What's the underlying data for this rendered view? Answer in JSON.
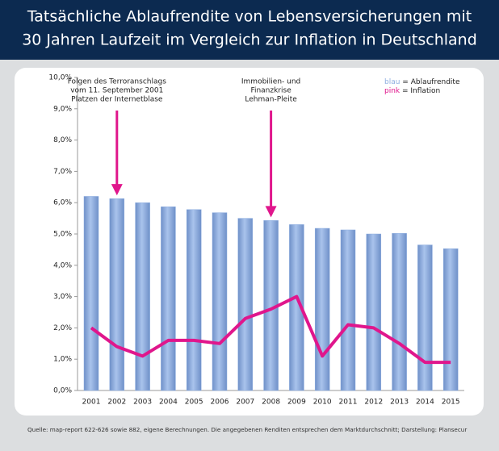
{
  "chart_data": {
    "type": "bar_line",
    "title_lines": [
      "Tatsächliche Ablaufrendite von Lebensversicherungen mit",
      "30 Jahren Laufzeit im Vergleich zur Inflation in Deutschland"
    ],
    "categories": [
      "2001",
      "2002",
      "2003",
      "2004",
      "2005",
      "2006",
      "2007",
      "2008",
      "2009",
      "2010",
      "2011",
      "2012",
      "2013",
      "2014",
      "2015"
    ],
    "series": [
      {
        "name": "Ablaufrendite",
        "color_label": "blau",
        "color": "#8eaee0",
        "values": [
          6.2,
          6.13,
          6.0,
          5.87,
          5.78,
          5.68,
          5.5,
          5.43,
          5.3,
          5.18,
          5.13,
          5.0,
          5.02,
          4.65,
          4.53
        ]
      },
      {
        "name": "Inflation",
        "color_label": "pink",
        "color": "#e0168c",
        "values": [
          2.0,
          1.4,
          1.1,
          1.6,
          1.6,
          1.5,
          2.3,
          2.6,
          3.0,
          1.1,
          2.1,
          2.0,
          1.5,
          0.9,
          0.9
        ]
      }
    ],
    "legend_separator": " = ",
    "ylim": [
      0,
      10
    ],
    "yticks": [
      {
        "value": 0,
        "label": "0,0%"
      },
      {
        "value": 1,
        "label": "1,0%"
      },
      {
        "value": 2,
        "label": "2,0%"
      },
      {
        "value": 3,
        "label": "3,0%"
      },
      {
        "value": 4,
        "label": "4,0%"
      },
      {
        "value": 5,
        "label": "5,0%"
      },
      {
        "value": 6,
        "label": "6,0%"
      },
      {
        "value": 7,
        "label": "7,0%"
      },
      {
        "value": 8,
        "label": "8,0%"
      },
      {
        "value": 9,
        "label": "9,0%"
      },
      {
        "value": 10,
        "label": "10,0%"
      }
    ],
    "annotations": [
      {
        "category": "2002",
        "lines": [
          "Folgen des Terroranschlags",
          "vom 11. September 2001",
          "Platzen der Internetblase"
        ]
      },
      {
        "category": "2008",
        "lines": [
          "Immobilien- und",
          "Finanzkrise",
          "Lehman-Pleite"
        ]
      }
    ],
    "source": "Quelle: map-report 622-626 sowie 882, eigene Berechnungen. Die angegebenen Renditen entsprechen dem Marktdurchschnitt; Darstellung: Plansecur"
  }
}
